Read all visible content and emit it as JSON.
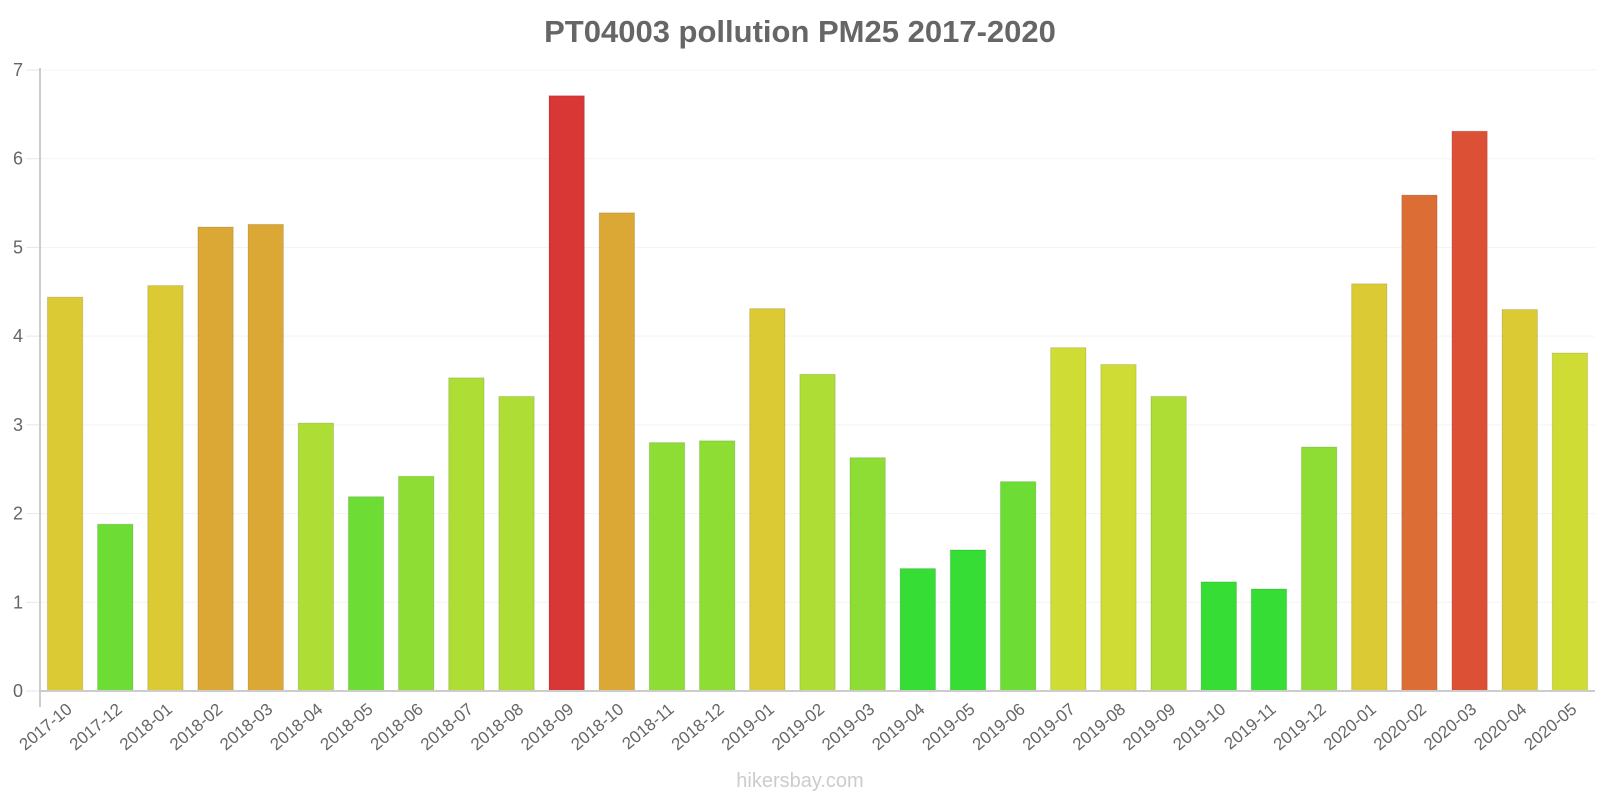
{
  "title": "PT04003 pollution PM25 2017-2020",
  "footer": "hikersbay.com",
  "chart_data": {
    "type": "bar",
    "title": "PT04003 pollution PM25 2017-2020",
    "xlabel": "",
    "ylabel": "",
    "ylim": [
      0,
      7
    ],
    "yticks": [
      0,
      1,
      2,
      3,
      4,
      5,
      6,
      7
    ],
    "grid": true,
    "legend": null,
    "categories": [
      "2017-10",
      "2017-12",
      "2018-01",
      "2018-02",
      "2018-03",
      "2018-04",
      "2018-05",
      "2018-06",
      "2018-07",
      "2018-08",
      "2018-09",
      "2018-10",
      "2018-11",
      "2018-12",
      "2019-01",
      "2019-02",
      "2019-03",
      "2019-04",
      "2019-05",
      "2019-06",
      "2019-07",
      "2019-08",
      "2019-09",
      "2019-10",
      "2019-11",
      "2019-12",
      "2020-01",
      "2020-02",
      "2020-03",
      "2020-04",
      "2020-05"
    ],
    "values": [
      4.44,
      1.88,
      4.57,
      5.23,
      5.26,
      3.02,
      2.19,
      2.42,
      3.53,
      3.32,
      6.71,
      5.39,
      2.8,
      2.82,
      4.31,
      3.57,
      2.63,
      1.38,
      1.59,
      2.36,
      3.87,
      3.68,
      3.32,
      1.23,
      1.15,
      2.75,
      4.59,
      5.59,
      6.31,
      4.3,
      3.81
    ],
    "colors": [
      "#dbca34",
      "#6ddd35",
      "#dbca34",
      "#dca835",
      "#dca835",
      "#aedd35",
      "#6ddd35",
      "#8ddd35",
      "#aedd35",
      "#aedd35",
      "#d93636",
      "#dca835",
      "#8ddd35",
      "#8ddd35",
      "#dbca34",
      "#aedd35",
      "#8ddd35",
      "#35dd35",
      "#35dd35",
      "#6ddd35",
      "#cfdc35",
      "#cfdc35",
      "#aedd35",
      "#35dd35",
      "#35dd35",
      "#8ddd35",
      "#dbca34",
      "#dc6e35",
      "#dc5035",
      "#dbca34",
      "#cfdc35"
    ]
  }
}
